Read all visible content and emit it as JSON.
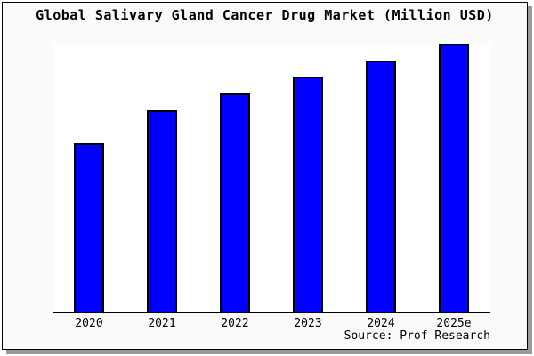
{
  "title": "Global Salivary Gland Cancer Drug Market (Million USD)",
  "source_note": "Source: Prof Research",
  "colors": {
    "bar_fill": "#0000ff",
    "bar_edge": "#000000",
    "card_background": "#fafafa",
    "plot_background": "#ffffff",
    "shadow": "#999999",
    "border": "#000000",
    "text": "#000000"
  },
  "chart_data": {
    "type": "bar",
    "title": "Global Salivary Gland Cancer Drug Market (Million USD)",
    "categories": [
      "2020",
      "2021",
      "2022",
      "2023",
      "2024",
      "2025e"
    ],
    "values": [
      62.8,
      75.1,
      81.4,
      87.7,
      93.7,
      100
    ],
    "values_note": "No y-axis scale is shown in the image; values are bar heights as percent of the tallest (2025e) bar, estimated from pixels.",
    "xlabel": "",
    "ylabel": "",
    "ylim": [
      0,
      100
    ],
    "grid": false,
    "legend": null,
    "y_axis_ticks": [],
    "source_note": "Source: Prof Research"
  }
}
